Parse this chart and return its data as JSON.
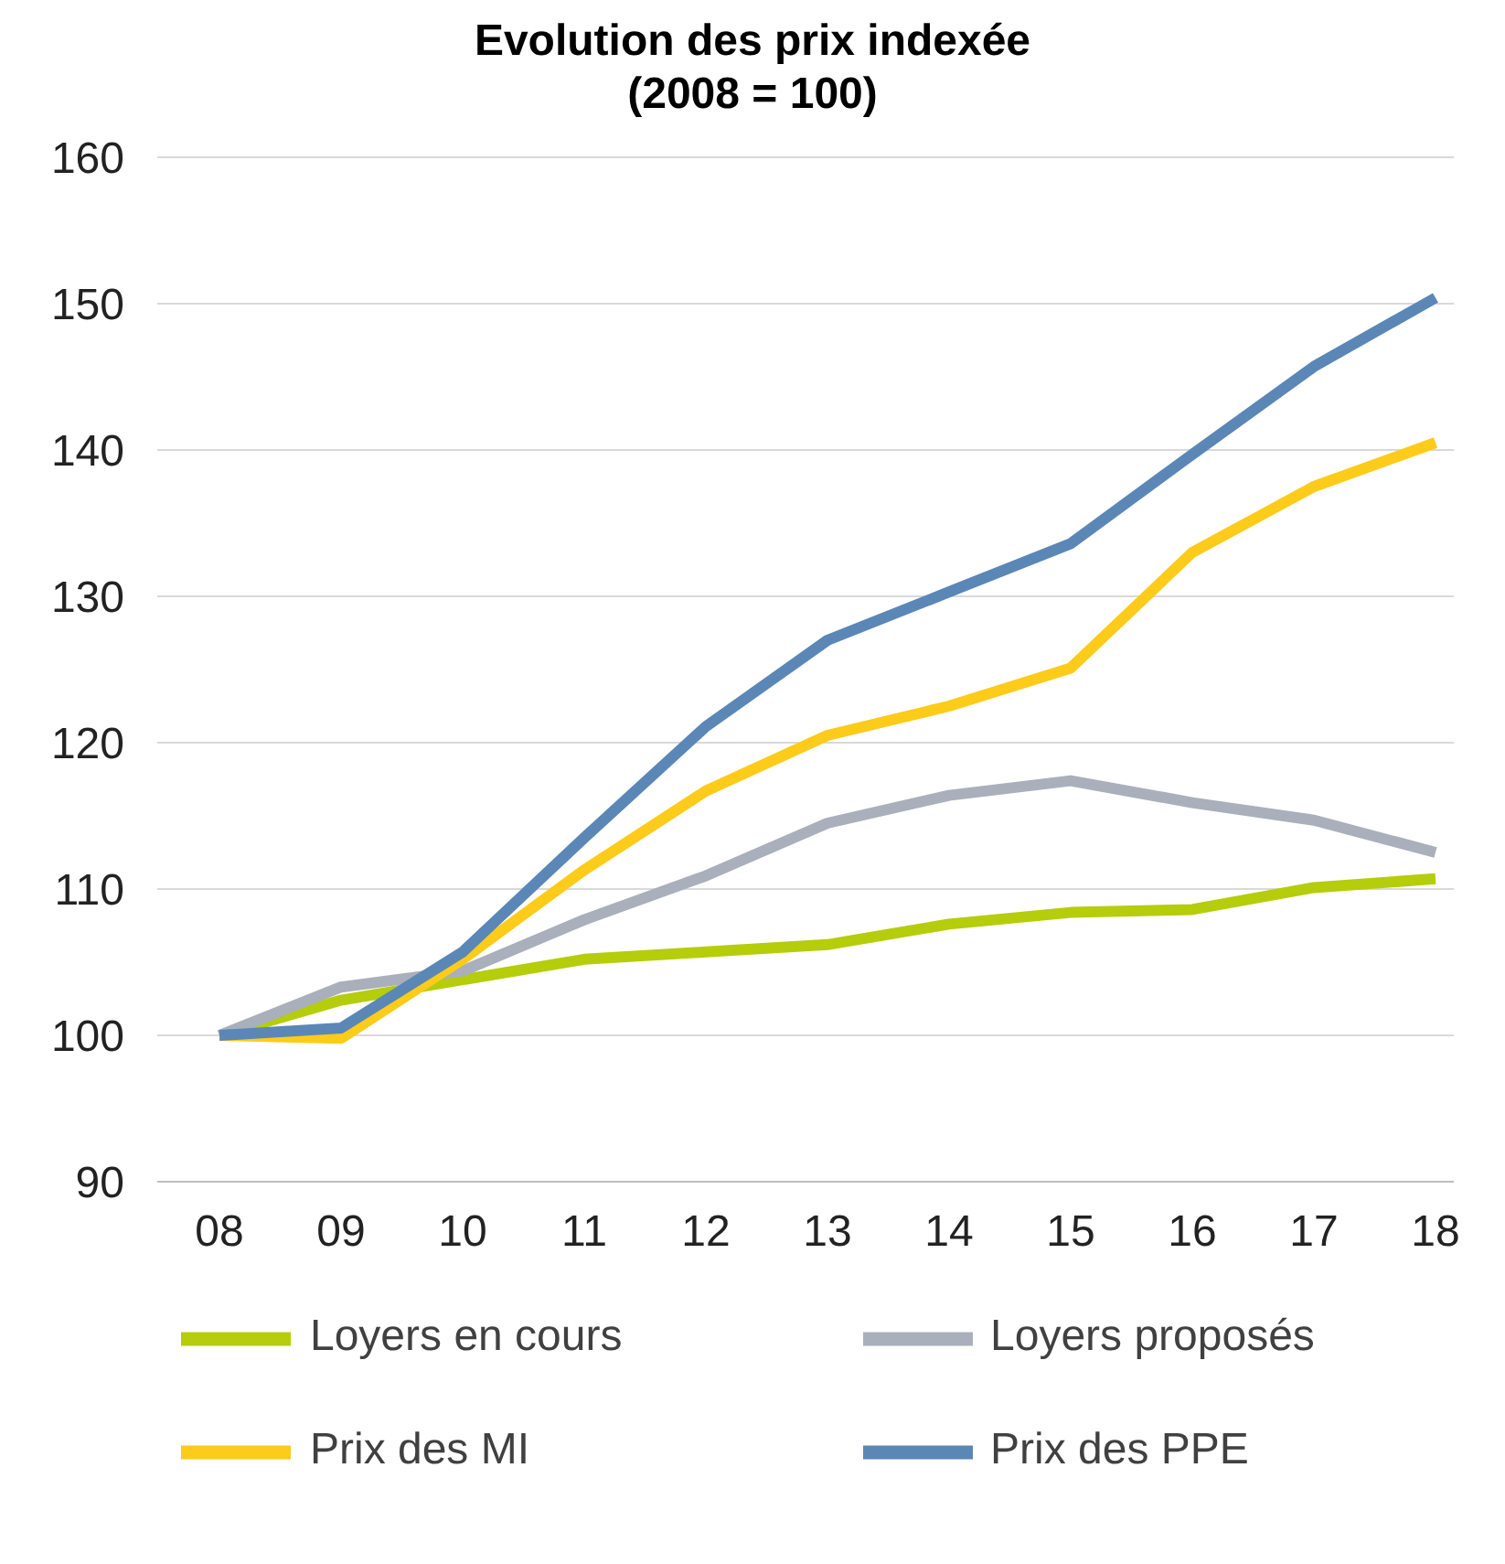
{
  "chart_data": {
    "type": "line",
    "title": "Evolution des prix indexée\n(2008 = 100)",
    "categories": [
      "08",
      "09",
      "10",
      "11",
      "12",
      "13",
      "14",
      "15",
      "16",
      "17",
      "18"
    ],
    "series": [
      {
        "name": "Loyers en cours",
        "color": "#b5cd0a",
        "values": [
          100,
          102.4,
          103.8,
          105.2,
          105.7,
          106.2,
          107.6,
          108.4,
          108.6,
          110.1,
          110.7
        ]
      },
      {
        "name": "Loyers proposés",
        "color": "#a9afbb",
        "values": [
          100,
          103.3,
          104.4,
          107.9,
          110.9,
          114.5,
          116.4,
          117.4,
          115.9,
          114.7,
          112.5
        ]
      },
      {
        "name": "Prix des MI",
        "color": "#fdcb1a",
        "values": [
          100,
          99.8,
          105.2,
          111.3,
          116.7,
          120.5,
          122.5,
          125.1,
          133,
          137.5,
          140.5
        ]
      },
      {
        "name": "Prix des PPE",
        "color": "#5a87b6",
        "values": [
          100,
          100.5,
          105.7,
          113.5,
          121.1,
          127,
          130.3,
          133.6,
          139.7,
          145.7,
          150.4
        ]
      }
    ],
    "ylim": [
      90,
      160
    ],
    "yticks": [
      90,
      100,
      110,
      120,
      130,
      140,
      150,
      160
    ],
    "grid": "y",
    "legend": "bottom",
    "marker": "none",
    "line_style": "solid"
  }
}
